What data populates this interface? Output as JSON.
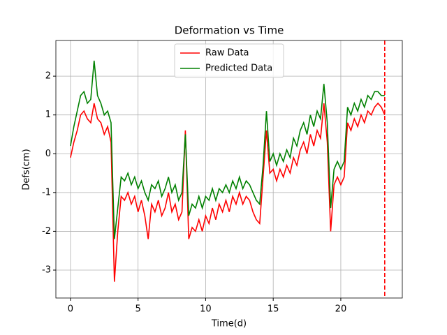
{
  "chart_data": {
    "type": "line",
    "title": "Deformation vs Time",
    "xlabel": "Time(d)",
    "ylabel": "Defs(cm)",
    "x": [
      0,
      0.25,
      0.5,
      0.75,
      1,
      1.25,
      1.5,
      1.75,
      2,
      2.25,
      2.5,
      2.75,
      3,
      3.25,
      3.5,
      3.75,
      4,
      4.25,
      4.5,
      4.75,
      5,
      5.25,
      5.5,
      5.75,
      6,
      6.25,
      6.5,
      6.75,
      7,
      7.25,
      7.5,
      7.75,
      8,
      8.25,
      8.5,
      8.75,
      9,
      9.25,
      9.5,
      9.75,
      10,
      10.25,
      10.5,
      10.75,
      11,
      11.25,
      11.5,
      11.75,
      12,
      12.25,
      12.5,
      12.75,
      13,
      13.25,
      13.5,
      13.75,
      14,
      14.25,
      14.5,
      14.75,
      15,
      15.25,
      15.5,
      15.75,
      16,
      16.25,
      16.5,
      16.75,
      17,
      17.25,
      17.5,
      17.75,
      18,
      18.25,
      18.5,
      18.75,
      19,
      19.25,
      19.5,
      19.75,
      20,
      20.25,
      20.5,
      20.75,
      21,
      21.25,
      21.5,
      21.75,
      22,
      22.25,
      22.5,
      22.75,
      23,
      23.25
    ],
    "series": [
      {
        "name": "Raw Data",
        "color": "#ff0000",
        "values": [
          -0.1,
          0.3,
          0.6,
          1.0,
          1.1,
          0.9,
          0.8,
          1.3,
          0.9,
          0.8,
          0.5,
          0.7,
          0.3,
          -3.3,
          -2.0,
          -1.1,
          -1.2,
          -1.0,
          -1.3,
          -1.1,
          -1.5,
          -1.2,
          -1.6,
          -2.2,
          -1.3,
          -1.5,
          -1.2,
          -1.6,
          -1.4,
          -1.0,
          -1.5,
          -1.3,
          -1.7,
          -1.5,
          0.6,
          -2.2,
          -1.9,
          -2.0,
          -1.7,
          -2.0,
          -1.6,
          -1.8,
          -1.4,
          -1.7,
          -1.3,
          -1.5,
          -1.2,
          -1.5,
          -1.1,
          -1.3,
          -1.0,
          -1.3,
          -1.1,
          -1.2,
          -1.5,
          -1.7,
          -1.8,
          -0.6,
          0.6,
          -0.5,
          -0.4,
          -0.7,
          -0.4,
          -0.6,
          -0.3,
          -0.5,
          -0.1,
          -0.3,
          0.1,
          0.3,
          0.0,
          0.5,
          0.2,
          0.6,
          0.4,
          1.3,
          0.3,
          -2.0,
          -0.8,
          -0.6,
          -0.8,
          -0.6,
          0.8,
          0.6,
          0.9,
          0.7,
          1.0,
          0.8,
          1.1,
          1.0,
          1.2,
          1.3,
          1.2,
          1.0
        ]
      },
      {
        "name": "Predicted Data",
        "color": "#008000",
        "values": [
          0.2,
          0.7,
          1.1,
          1.5,
          1.6,
          1.3,
          1.4,
          2.4,
          1.5,
          1.3,
          1.0,
          1.1,
          0.8,
          -2.2,
          -1.4,
          -0.6,
          -0.7,
          -0.5,
          -0.8,
          -0.6,
          -0.9,
          -0.7,
          -1.0,
          -1.2,
          -0.8,
          -0.9,
          -0.7,
          -1.1,
          -0.9,
          -0.6,
          -1.0,
          -0.8,
          -1.2,
          -1.0,
          0.5,
          -1.6,
          -1.3,
          -1.4,
          -1.1,
          -1.4,
          -1.1,
          -1.2,
          -0.9,
          -1.2,
          -0.9,
          -1.0,
          -0.8,
          -1.0,
          -0.7,
          -0.9,
          -0.6,
          -0.9,
          -0.7,
          -0.8,
          -1.0,
          -1.2,
          -1.3,
          -0.3,
          1.1,
          -0.2,
          0.0,
          -0.3,
          0.0,
          -0.2,
          0.1,
          -0.1,
          0.4,
          0.2,
          0.6,
          0.8,
          0.5,
          1.0,
          0.7,
          1.1,
          0.9,
          1.8,
          0.8,
          -1.4,
          -0.4,
          -0.2,
          -0.4,
          -0.2,
          1.2,
          1.0,
          1.3,
          1.1,
          1.4,
          1.2,
          1.5,
          1.4,
          1.6,
          1.6,
          1.5,
          1.5
        ]
      }
    ],
    "vline": {
      "x": 23.25,
      "color": "#ff0000",
      "dashed": true
    },
    "xlim": [
      -1.08,
      24.55
    ],
    "ylim": [
      -3.72,
      2.92
    ],
    "xticks": [
      0,
      5,
      10,
      15,
      20
    ],
    "yticks": [
      -3,
      -2,
      -1,
      0,
      1,
      2
    ],
    "grid": true,
    "legend": "upper center"
  }
}
